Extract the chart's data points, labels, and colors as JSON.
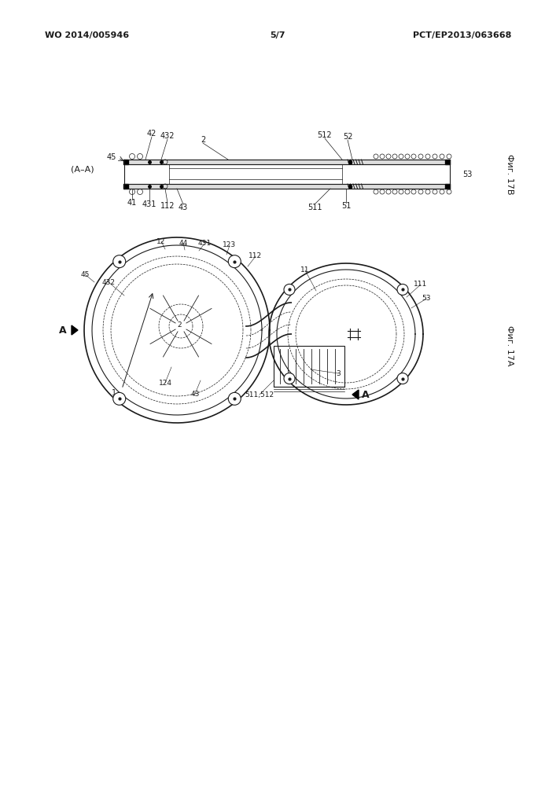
{
  "bg_color": "#ffffff",
  "header_left": "WO 2014/005946",
  "header_right": "PCT/EP2013/063668",
  "header_center": "5/7",
  "fig_17b_label": "Фиг. 17B",
  "fig_17a_label": "Фиг. 17A",
  "section_label": "(A–A)",
  "line_color": "#1a1a1a",
  "label_color": "#1a1a1a"
}
